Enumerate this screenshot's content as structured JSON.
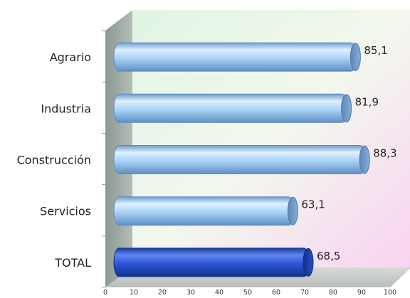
{
  "chart_data": {
    "type": "bar",
    "orientation": "horizontal",
    "style": "3d-cylinder",
    "categories": [
      "Agrario",
      "Industria",
      "Construcción",
      "Servicios",
      "TOTAL"
    ],
    "values": [
      85.1,
      81.9,
      88.3,
      63.1,
      68.5
    ],
    "value_labels": [
      "85,1",
      "81,9",
      "88,3",
      "63,1",
      "68,5"
    ],
    "xlim": [
      0,
      100
    ],
    "xticks": [
      "0",
      "10",
      "20",
      "30",
      "40",
      "50",
      "60",
      "70",
      "80",
      "90",
      "100"
    ],
    "title": "",
    "xlabel": "",
    "ylabel": "",
    "grid": false,
    "legend": "none",
    "colors": {
      "bar": "#a8d4f8",
      "bar_highlight": "#2b57d8",
      "wall_left": "#9aa6a0",
      "floor": "#c7cbc8",
      "back_wall_green": "#e2f6e4",
      "back_wall_pink": "#f9d6f2"
    }
  }
}
